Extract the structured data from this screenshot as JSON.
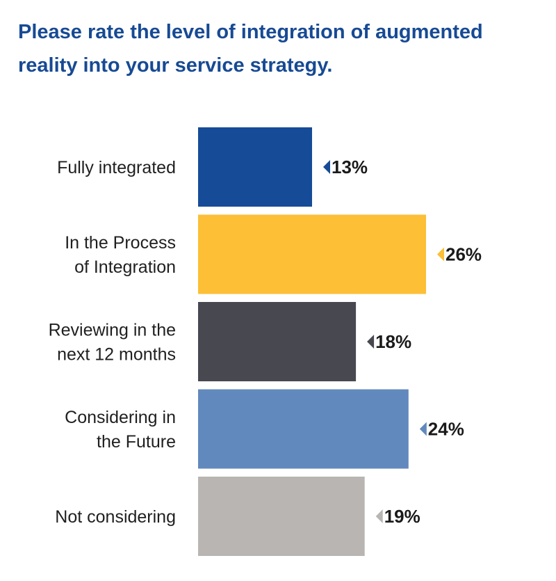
{
  "chart_data": {
    "type": "bar",
    "orientation": "horizontal",
    "title": "Please rate the level of integration of augmented reality into your service strategy.",
    "categories": [
      [
        "Fully integrated"
      ],
      [
        "In the Process",
        "of Integration"
      ],
      [
        "Reviewing in the",
        "next 12 months"
      ],
      [
        "Considering in",
        "the Future"
      ],
      [
        "Not considering"
      ]
    ],
    "values": [
      13,
      26,
      18,
      24,
      19
    ],
    "value_labels": [
      "13%",
      "26%",
      "18%",
      "24%",
      "19%"
    ],
    "unit": "%",
    "colors": [
      "#164c97",
      "#fcbf35",
      "#474850",
      "#6189bd",
      "#b8b5b2"
    ],
    "xlim": [
      0,
      26
    ],
    "grid": false,
    "legend": "none"
  }
}
